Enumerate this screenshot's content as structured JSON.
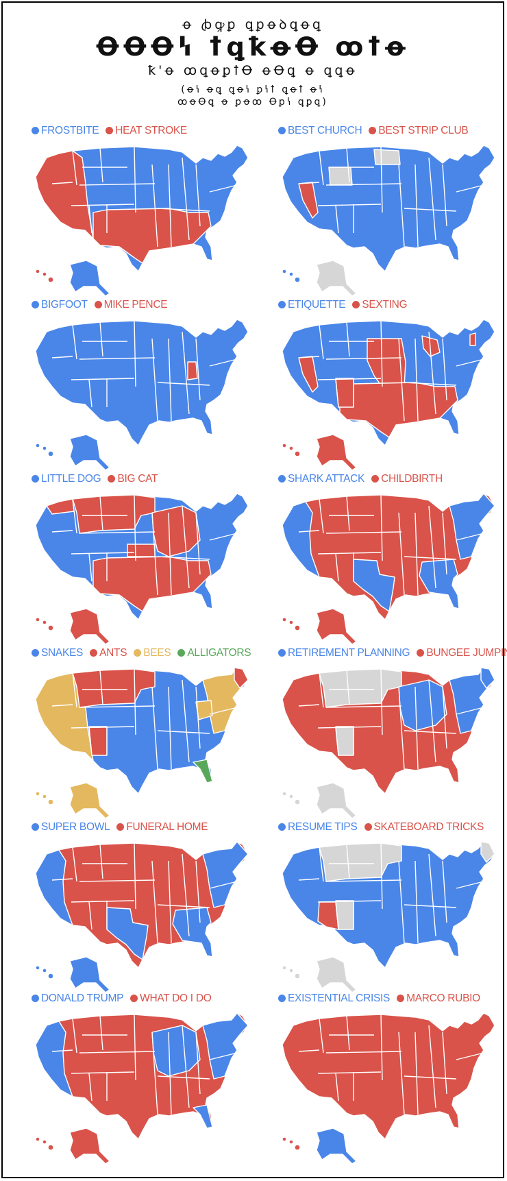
{
  "header": {
    "line1": "ꝋ ꞗꝙꝑ ꝗꝑꝋꝺꝗꝋꝗ",
    "line2": "ꝊꝊꝊꝇ ꝉꝗꝁꝋꝊ ꝏꝉꝋ",
    "line3": "ꝁ'ꝋ ꝏꝗꝋꝑꝉꝊ ꝋꝊꝗ ꝋ ꝗꝗꝋ",
    "line4": "(ꝋꝇ ꝋꝗ ꝗꝋꝇ ꝑꝇꝉ ꝗꝋꝉ ꝋꝇ",
    "line5": "ꝏꝋꝊꝗ ꝋ ꝑꝋꝏ Ꝋꝑꝇ ꝗꝑꝗ)"
  },
  "colors": {
    "blue": "#4a86e8",
    "red": "#d9534a",
    "yellow": "#e4b85e",
    "green": "#58a85a",
    "gray": "#d6d6d6"
  },
  "maps": [
    {
      "legend": [
        {
          "label": "FROSTBITE",
          "color": "blue"
        },
        {
          "label": "HEAT STROKE",
          "color": "red"
        }
      ],
      "fill": "blue",
      "regions": {
        "west": "red",
        "south": "red",
        "ak": "blue",
        "hi": "red"
      }
    },
    {
      "legend": [
        {
          "label": "BEST CHURCH",
          "color": "blue"
        },
        {
          "label": "BEST STRIP CLUB",
          "color": "red"
        }
      ],
      "fill": "blue",
      "regions": {
        "nv": "red",
        "nd": "gray",
        "wy": "gray",
        "ak": "gray",
        "hi": "blue"
      }
    },
    {
      "legend": [
        {
          "label": "BIGFOOT",
          "color": "blue"
        },
        {
          "label": "MIKE PENCE",
          "color": "red"
        }
      ],
      "fill": "blue",
      "regions": {
        "in": "red",
        "ak": "blue",
        "hi": "blue"
      }
    },
    {
      "legend": [
        {
          "label": "ETIQUETTE",
          "color": "blue"
        },
        {
          "label": "SEXTING",
          "color": "red"
        }
      ],
      "fill": "blue",
      "regions": {
        "nv": "red",
        "nm": "red",
        "plains": "red",
        "south": "red",
        "mi": "red",
        "vt": "red",
        "ak": "red",
        "hi": "red"
      }
    },
    {
      "legend": [
        {
          "label": "LITTLE DOG",
          "color": "blue"
        },
        {
          "label": "BIG CAT",
          "color": "red"
        }
      ],
      "fill": "blue",
      "regions": {
        "wa": "red",
        "north": "red",
        "midwest": "red",
        "ks": "red",
        "south": "red",
        "ak": "red",
        "hi": "red"
      }
    },
    {
      "legend": [
        {
          "label": "SHARK ATTACK",
          "color": "blue"
        },
        {
          "label": "CHILDBIRTH",
          "color": "red"
        }
      ],
      "fill": "red",
      "regions": {
        "coast": "blue",
        "tx": "blue",
        "southeast": "blue",
        "northeast": "blue",
        "ak": "red",
        "hi": "red"
      }
    },
    {
      "legend": [
        {
          "label": "SNAKES",
          "color": "blue"
        },
        {
          "label": "ANTS",
          "color": "red"
        },
        {
          "label": "BEES",
          "color": "yellow"
        },
        {
          "label": "ALLIGATORS",
          "color": "green"
        }
      ],
      "fill": "blue",
      "regions": {
        "west": "yellow",
        "north": "red",
        "nm": "red",
        "ohio": "yellow",
        "northeast": "yellow",
        "me": "red",
        "fl": "green",
        "ak": "yellow",
        "hi": "yellow"
      }
    },
    {
      "legend": [
        {
          "label": "RETIREMENT PLANNING",
          "color": "blue"
        },
        {
          "label": "BUNGEE JUMPING",
          "color": "red"
        }
      ],
      "fill": "red",
      "regions": {
        "north": "gray",
        "nm": "gray",
        "midwest": "blue",
        "northeast": "blue",
        "me": "blue",
        "ak": "gray",
        "hi": "gray"
      }
    },
    {
      "legend": [
        {
          "label": "SUPER BOWL",
          "color": "blue"
        },
        {
          "label": "FUNERAL HOME",
          "color": "red"
        }
      ],
      "fill": "red",
      "regions": {
        "coast": "blue",
        "tx": "blue",
        "southeast": "blue",
        "northeast": "blue",
        "ak": "blue",
        "hi": "blue"
      }
    },
    {
      "legend": [
        {
          "label": "RESUME TIPS",
          "color": "blue"
        },
        {
          "label": "SKATEBOARD TRICKS",
          "color": "red"
        }
      ],
      "fill": "blue",
      "regions": {
        "north": "gray",
        "nm": "gray",
        "az": "red",
        "me": "gray",
        "ak": "gray",
        "hi": "gray"
      }
    },
    {
      "legend": [
        {
          "label": "DONALD TRUMP",
          "color": "blue"
        },
        {
          "label": "WHAT DO I DO",
          "color": "red"
        }
      ],
      "fill": "red",
      "regions": {
        "coast": "blue",
        "northeast": "blue",
        "midwest": "blue",
        "fl": "blue",
        "ak": "red",
        "hi": "red"
      }
    },
    {
      "legend": [
        {
          "label": "EXISTENTIAL CRISIS",
          "color": "blue"
        },
        {
          "label": "MARCO RUBIO",
          "color": "red"
        }
      ],
      "fill": "red",
      "regions": {
        "ak": "blue",
        "hi": "red"
      }
    }
  ]
}
